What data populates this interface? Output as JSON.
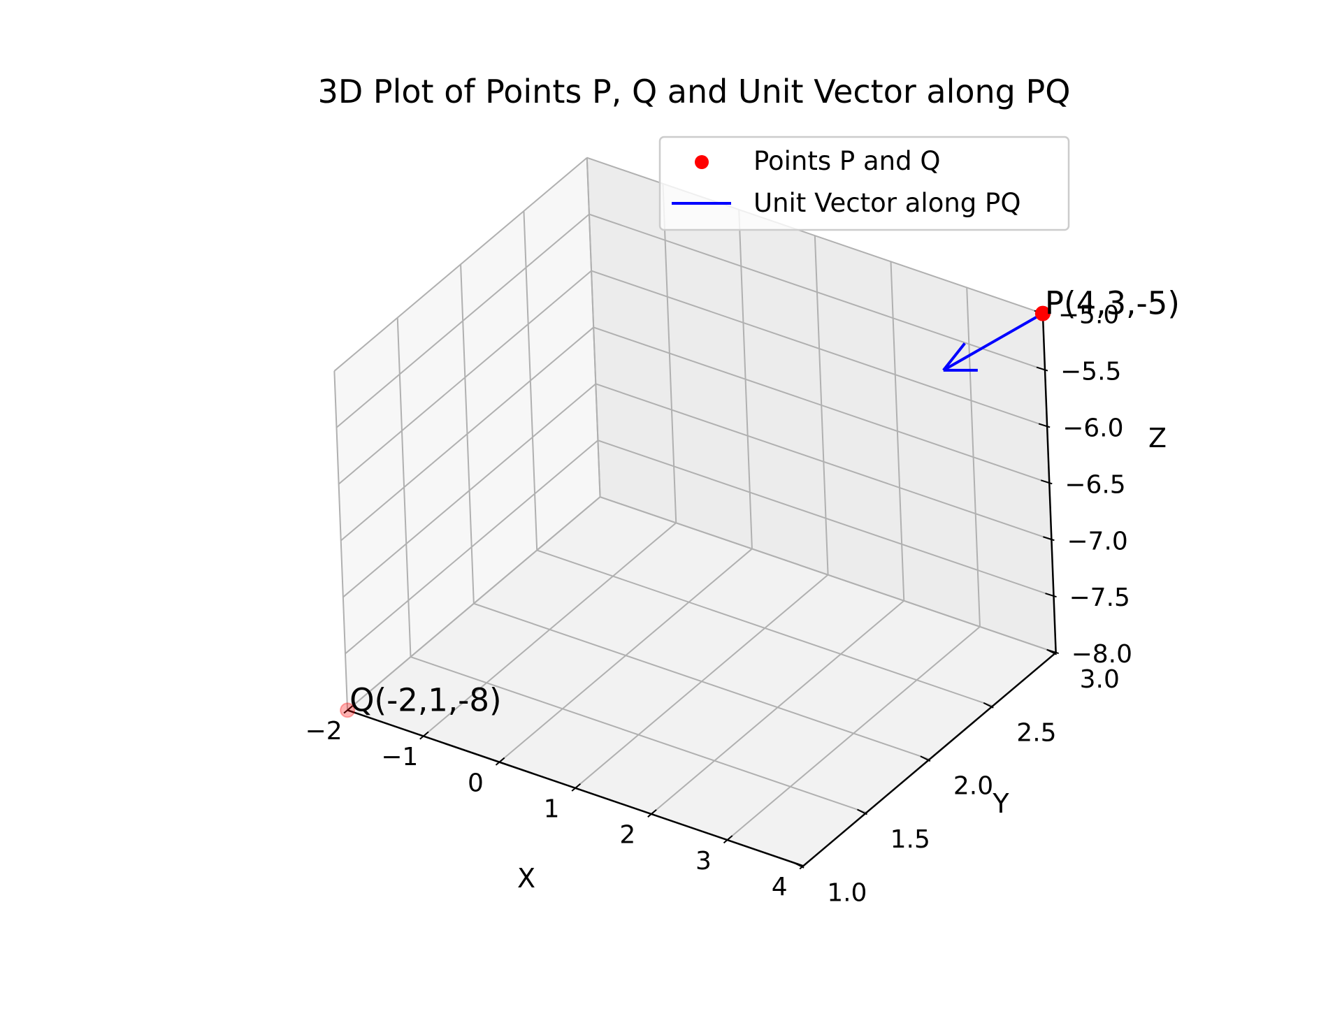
{
  "chart_data": {
    "type": "scatter",
    "title": "3D Plot of Points P, Q and Unit Vector along PQ",
    "xlabel": "X",
    "ylabel": "Y",
    "zlabel": "Z",
    "xlim": [
      -2,
      4
    ],
    "ylim": [
      1,
      3
    ],
    "zlim": [
      -8,
      -5
    ],
    "xticks": [
      "−2",
      "−1",
      "0",
      "1",
      "2",
      "3",
      "4"
    ],
    "yticks": [
      "1.0",
      "1.5",
      "2.0",
      "2.5",
      "3.0"
    ],
    "zticks": [
      "−8.0",
      "−7.5",
      "−7.0",
      "−6.5",
      "−6.0",
      "−5.5",
      "−5.0"
    ],
    "grid": true,
    "legend_position": "upper-right",
    "series": [
      {
        "name": "Points P and Q",
        "type": "scatter",
        "color": "#ff0000",
        "points": [
          {
            "x": 4,
            "y": 3,
            "z": -5,
            "label": "P(4,3,-5)"
          },
          {
            "x": -2,
            "y": 1,
            "z": -8,
            "label": "Q(-2,1,-8)"
          }
        ]
      },
      {
        "name": "Unit Vector along PQ",
        "type": "quiver",
        "color": "#0000ff",
        "start": [
          4,
          3,
          -5
        ],
        "direction": [
          -0.857,
          -0.286,
          -0.429
        ]
      }
    ]
  }
}
